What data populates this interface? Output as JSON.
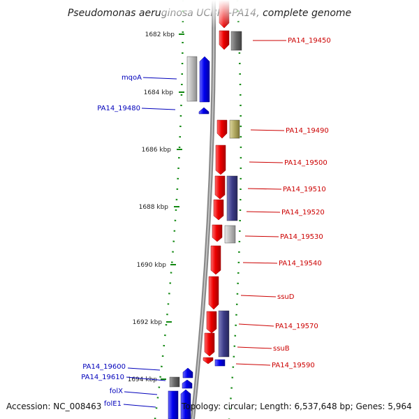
{
  "title": "Pseudomonas aeruginosa UCBPP-PA14, complete genome",
  "scale": [
    {
      "label": "1682 kbp"
    },
    {
      "label": "1684 kbp"
    },
    {
      "label": "1686 kbp"
    },
    {
      "label": "1688 kbp"
    },
    {
      "label": "1690 kbp"
    },
    {
      "label": "1692 kbp"
    },
    {
      "label": "1694 kbp"
    }
  ],
  "genes_right": [
    {
      "label": "PA14_19450"
    },
    {
      "label": "PA14_19490"
    },
    {
      "label": "PA14_19500"
    },
    {
      "label": "PA14_19510"
    },
    {
      "label": "PA14_19520"
    },
    {
      "label": "PA14_19530"
    },
    {
      "label": "PA14_19540"
    },
    {
      "label": "ssuD"
    },
    {
      "label": "PA14_19570"
    },
    {
      "label": "ssuB"
    },
    {
      "label": "PA14_19590"
    }
  ],
  "genes_left": [
    {
      "label": "mqoA"
    },
    {
      "label": "PA14_19480"
    },
    {
      "label": "PA14_19600"
    },
    {
      "label": "PA14_19610"
    },
    {
      "label": "folX"
    },
    {
      "label": "folE1"
    }
  ],
  "footer": {
    "accession": "Accession: NC_008463",
    "summary": "Topology: circular; Length: 6,537,648 bp; Genes: 5,964"
  },
  "colors": {
    "forward_strand": "#ee0000",
    "reverse_strand": "#0000ee",
    "backbone": "#888888",
    "ticks": "#118811",
    "cog_navy": "#3c3c88",
    "cog_grey": "#bbbbbb",
    "cog_dark": "#666666",
    "cog_olive": "#b0a860"
  }
}
